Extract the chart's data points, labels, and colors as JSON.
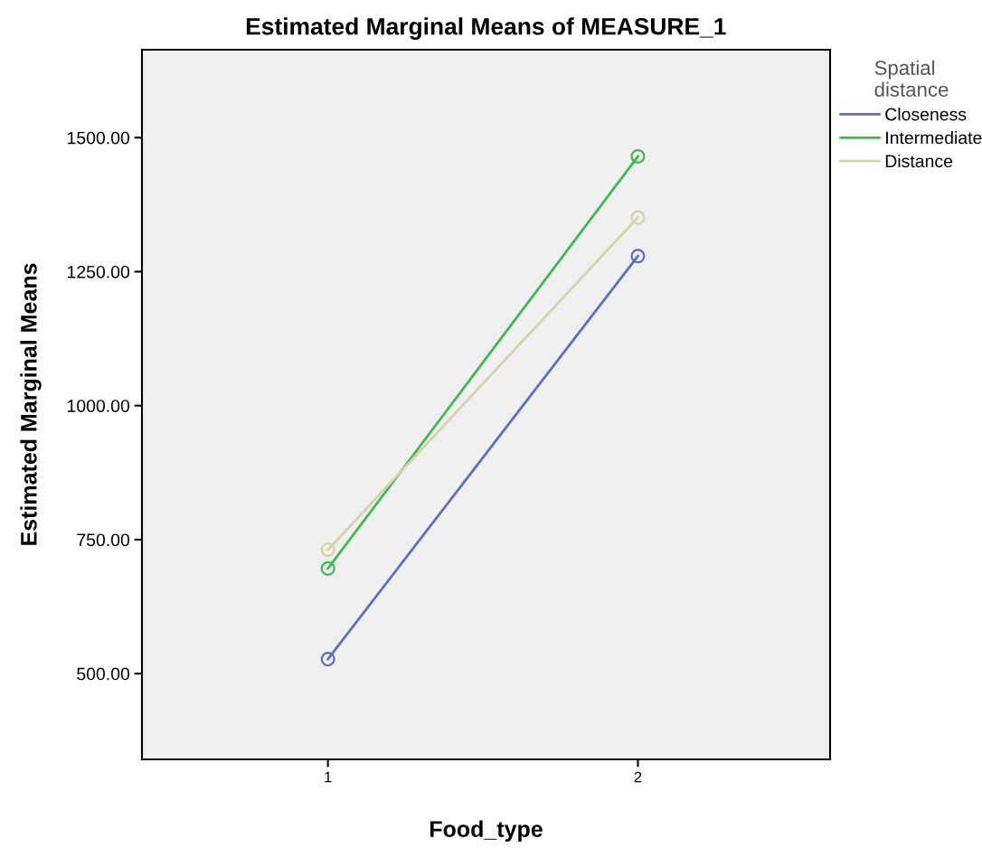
{
  "chart_data": {
    "type": "line",
    "title": "Estimated Marginal Means of MEASURE_1",
    "xlabel": "Food_type",
    "ylabel": "Estimated Marginal Means",
    "legend_title": "Spatial\ndistance",
    "categories": [
      "1",
      "2"
    ],
    "series": [
      {
        "name": "Closeness",
        "color": "#5a6fc2",
        "values": [
          527,
          1279
        ]
      },
      {
        "name": "Intermediate",
        "color": "#3dbb4a",
        "values": [
          696,
          1465
        ]
      },
      {
        "name": "Distance",
        "color": "#d6d2a6",
        "values": [
          731,
          1351
        ]
      }
    ],
    "ylim": [
      340,
      1664
    ],
    "yticks": [
      {
        "value": 500,
        "label": "500.00"
      },
      {
        "value": 750,
        "label": "750.00"
      },
      {
        "value": 1000,
        "label": "1000.00"
      },
      {
        "value": 1250,
        "label": "1250.00"
      },
      {
        "value": 1500,
        "label": "1500.00"
      }
    ],
    "marker": "circle",
    "line_style": "solid",
    "grid": false,
    "legend": "right"
  }
}
